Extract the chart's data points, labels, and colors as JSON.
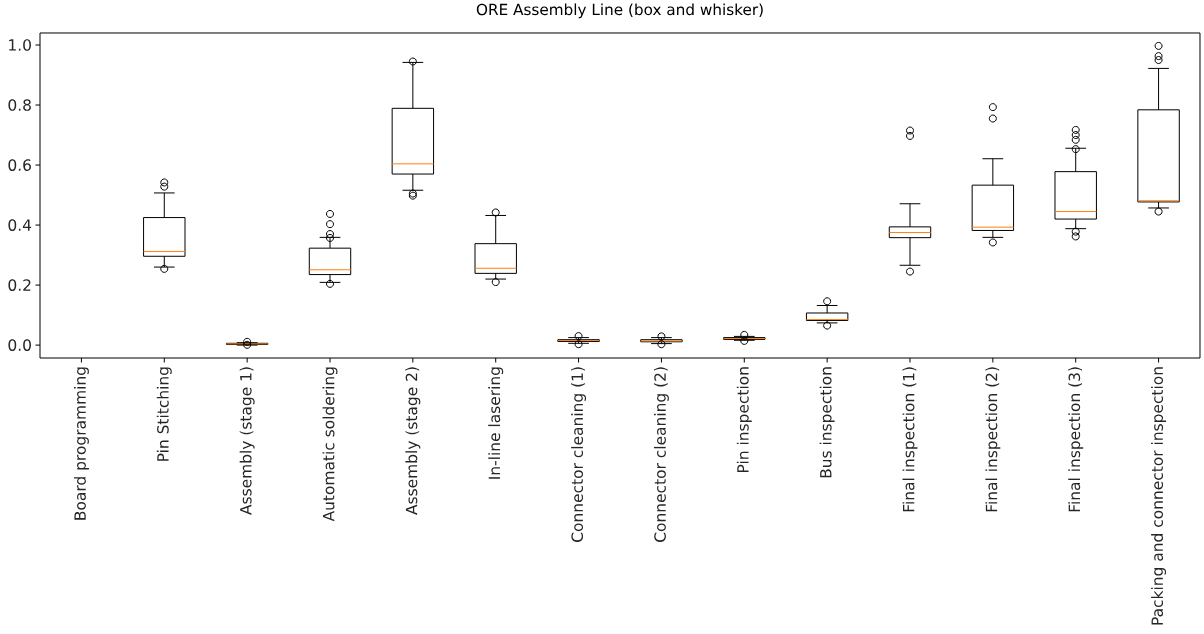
{
  "chart_data": {
    "type": "box",
    "title": "ORE Assembly Line (box and whisker)",
    "categories": [
      "Board programming",
      "Pin Stitching",
      "Assembly (stage 1)",
      "Automatic soldering",
      "Assembly (stage 2)",
      "In-line lasering",
      "Connector cleaning (1)",
      "Connector cleaning (2)",
      "Pin inspection",
      "Bus inspection",
      "Final inspection (1)",
      "Final inspection (2)",
      "Final inspection (3)",
      "Packing and connector inspection"
    ],
    "boxes": [
      null,
      {
        "low": 0.26,
        "q1": 0.296,
        "median": 0.312,
        "q3": 0.425,
        "high": 0.507,
        "outliers": [
          0.542,
          0.528,
          0.254
        ]
      },
      {
        "low": 0.0,
        "q1": 0.002,
        "median": 0.004,
        "q3": 0.006,
        "high": 0.008,
        "outliers": [
          0.011,
          0.001
        ]
      },
      {
        "low": 0.209,
        "q1": 0.235,
        "median": 0.251,
        "q3": 0.323,
        "high": 0.359,
        "outliers": [
          0.437,
          0.403,
          0.37,
          0.357,
          0.204
        ]
      },
      {
        "low": 0.516,
        "q1": 0.57,
        "median": 0.604,
        "q3": 0.789,
        "high": 0.942,
        "outliers": [
          0.945,
          0.505,
          0.498
        ]
      },
      {
        "low": 0.22,
        "q1": 0.239,
        "median": 0.256,
        "q3": 0.338,
        "high": 0.432,
        "outliers": [
          0.442,
          0.21
        ]
      },
      {
        "low": 0.006,
        "q1": 0.012,
        "median": 0.015,
        "q3": 0.018,
        "high": 0.025,
        "outliers": [
          0.03,
          0.003
        ]
      },
      {
        "low": 0.005,
        "q1": 0.011,
        "median": 0.014,
        "q3": 0.018,
        "high": 0.025,
        "outliers": [
          0.029,
          0.003
        ]
      },
      {
        "low": 0.016,
        "q1": 0.019,
        "median": 0.022,
        "q3": 0.025,
        "high": 0.029,
        "outliers": [
          0.034,
          0.014
        ]
      },
      {
        "low": 0.074,
        "q1": 0.082,
        "median": 0.085,
        "q3": 0.107,
        "high": 0.132,
        "outliers": [
          0.146,
          0.065
        ]
      },
      {
        "low": 0.266,
        "q1": 0.358,
        "median": 0.375,
        "q3": 0.394,
        "high": 0.471,
        "outliers": [
          0.715,
          0.697,
          0.245
        ]
      },
      {
        "low": 0.359,
        "q1": 0.382,
        "median": 0.393,
        "q3": 0.533,
        "high": 0.621,
        "outliers": [
          0.793,
          0.755,
          0.342
        ]
      },
      {
        "low": 0.388,
        "q1": 0.42,
        "median": 0.445,
        "q3": 0.578,
        "high": 0.656,
        "outliers": [
          0.717,
          0.7,
          0.684,
          0.653,
          0.378,
          0.362
        ]
      },
      {
        "low": 0.457,
        "q1": 0.477,
        "median": 0.481,
        "q3": 0.784,
        "high": 0.922,
        "outliers": [
          0.997,
          0.963,
          0.95,
          0.445
        ]
      }
    ],
    "color": "#000000",
    "ylim": [
      -0.043,
      1.04
    ],
    "yticks": [
      {
        "value": 0,
        "label": "0.0"
      },
      0.2,
      0.4,
      0.6,
      0.8,
      {
        "value": 1,
        "label": "1.0"
      }
    ],
    "marker": "circle",
    "grid": false
  }
}
